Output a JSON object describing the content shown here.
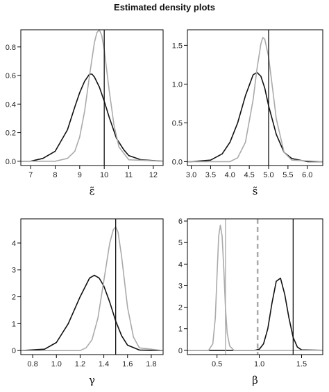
{
  "figure": {
    "title": "Estimated density plots"
  },
  "colors": {
    "dark": "#111111",
    "light": "#aaaaaa",
    "frame": "#000000"
  },
  "chart_data": [
    {
      "type": "line",
      "xlabel": "ε̃",
      "xlim": [
        6.6,
        12.4
      ],
      "ylim": [
        -0.03,
        0.92
      ],
      "xticks": [
        "7",
        "8",
        "9",
        "10",
        "11",
        "12"
      ],
      "yticks": [
        "0.0",
        "0.2",
        "0.4",
        "0.6",
        "0.8"
      ],
      "series": [
        {
          "color": "dark",
          "x": [
            6.6,
            7.0,
            7.5,
            8.0,
            8.5,
            8.8,
            9.0,
            9.2,
            9.4,
            9.5,
            9.6,
            9.8,
            10.0,
            10.2,
            10.5,
            10.8,
            11.0,
            11.5,
            12.4
          ],
          "y": [
            0.0,
            0.0,
            0.02,
            0.07,
            0.22,
            0.38,
            0.48,
            0.56,
            0.61,
            0.61,
            0.59,
            0.52,
            0.42,
            0.31,
            0.16,
            0.08,
            0.04,
            0.01,
            0.0
          ]
        },
        {
          "color": "light",
          "x": [
            6.6,
            8.0,
            8.5,
            8.8,
            9.0,
            9.2,
            9.4,
            9.6,
            9.7,
            9.8,
            9.9,
            10.0,
            10.2,
            10.4,
            10.6,
            11.0,
            12.4
          ],
          "y": [
            0.0,
            0.0,
            0.02,
            0.07,
            0.17,
            0.35,
            0.6,
            0.83,
            0.9,
            0.92,
            0.88,
            0.78,
            0.5,
            0.25,
            0.1,
            0.01,
            0.0
          ]
        }
      ],
      "vlines": [
        {
          "x": 10.0,
          "color": "dark",
          "dashed": false
        }
      ]
    },
    {
      "type": "line",
      "xlabel": "s̃",
      "xlim": [
        2.9,
        6.4
      ],
      "ylim": [
        -0.05,
        1.7
      ],
      "xticks": [
        "3.0",
        "3.5",
        "4.0",
        "4.5",
        "5.0",
        "5.5",
        "6.0"
      ],
      "yticks": [
        "0.0",
        "0.5",
        "1.0",
        "1.5"
      ],
      "series": [
        {
          "color": "dark",
          "x": [
            2.9,
            3.0,
            3.5,
            3.8,
            4.0,
            4.2,
            4.4,
            4.6,
            4.7,
            4.8,
            4.9,
            5.0,
            5.2,
            5.4,
            5.6,
            6.0,
            6.4
          ],
          "y": [
            0.0,
            0.0,
            0.02,
            0.1,
            0.25,
            0.5,
            0.85,
            1.12,
            1.15,
            1.1,
            0.95,
            0.72,
            0.35,
            0.12,
            0.04,
            0.0,
            0.0
          ]
        },
        {
          "color": "light",
          "x": [
            2.9,
            4.0,
            4.2,
            4.4,
            4.6,
            4.7,
            4.8,
            4.85,
            4.9,
            5.0,
            5.1,
            5.2,
            5.4,
            5.6,
            6.4
          ],
          "y": [
            0.0,
            0.0,
            0.05,
            0.25,
            0.8,
            1.2,
            1.52,
            1.6,
            1.58,
            1.35,
            0.95,
            0.55,
            0.12,
            0.02,
            0.0
          ]
        }
      ],
      "vlines": [
        {
          "x": 5.0,
          "color": "dark",
          "dashed": false
        }
      ]
    },
    {
      "type": "line",
      "xlabel": "γ",
      "xlim": [
        0.7,
        1.9
      ],
      "ylim": [
        -0.15,
        4.9
      ],
      "xticks": [
        "0.8",
        "1.0",
        "1.2",
        "1.4",
        "1.6",
        "1.8"
      ],
      "yticks": [
        "0",
        "1",
        "2",
        "3",
        "4"
      ],
      "series": [
        {
          "color": "dark",
          "x": [
            0.7,
            0.9,
            1.0,
            1.1,
            1.2,
            1.28,
            1.32,
            1.36,
            1.4,
            1.45,
            1.5,
            1.55,
            1.6,
            1.7,
            1.9
          ],
          "y": [
            0.0,
            0.05,
            0.3,
            1.0,
            2.0,
            2.7,
            2.8,
            2.7,
            2.4,
            1.8,
            1.1,
            0.55,
            0.2,
            0.02,
            0.0
          ]
        },
        {
          "color": "light",
          "x": [
            0.7,
            1.2,
            1.25,
            1.3,
            1.35,
            1.4,
            1.45,
            1.48,
            1.5,
            1.52,
            1.55,
            1.6,
            1.65,
            1.7,
            1.9
          ],
          "y": [
            0.0,
            0.0,
            0.1,
            0.4,
            1.2,
            2.6,
            4.0,
            4.5,
            4.6,
            4.4,
            3.5,
            1.6,
            0.5,
            0.1,
            0.0
          ]
        }
      ],
      "vlines": [
        {
          "x": 1.5,
          "color": "dark",
          "dashed": false
        }
      ]
    },
    {
      "type": "line",
      "xlabel": "β",
      "xlim": [
        0.15,
        1.75
      ],
      "ylim": [
        -0.2,
        6.1
      ],
      "xticks": [
        "0.5",
        "1.0",
        "1.5"
      ],
      "yticks": [
        "0",
        "1",
        "2",
        "3",
        "4",
        "5",
        "6"
      ],
      "series": [
        {
          "color": "dark",
          "x": [
            0.15,
            0.95,
            1.0,
            1.05,
            1.1,
            1.15,
            1.2,
            1.25,
            1.3,
            1.35,
            1.4,
            1.45,
            1.5,
            1.75
          ],
          "y": [
            0.0,
            0.0,
            0.05,
            0.3,
            1.0,
            2.2,
            3.2,
            3.35,
            2.6,
            1.5,
            0.6,
            0.15,
            0.02,
            0.0
          ]
        },
        {
          "color": "light",
          "x": [
            0.15,
            0.4,
            0.45,
            0.48,
            0.5,
            0.52,
            0.54,
            0.56,
            0.58,
            0.6,
            0.62,
            0.65,
            0.7,
            1.75
          ],
          "y": [
            0.0,
            0.0,
            0.3,
            1.5,
            3.5,
            5.3,
            5.8,
            5.3,
            3.8,
            2.0,
            0.8,
            0.2,
            0.0,
            0.0
          ]
        }
      ],
      "vlines": [
        {
          "x": 0.6,
          "color": "light",
          "dashed": false
        },
        {
          "x": 0.98,
          "color": "light",
          "dashed": true
        },
        {
          "x": 1.4,
          "color": "dark",
          "dashed": false
        }
      ]
    }
  ]
}
